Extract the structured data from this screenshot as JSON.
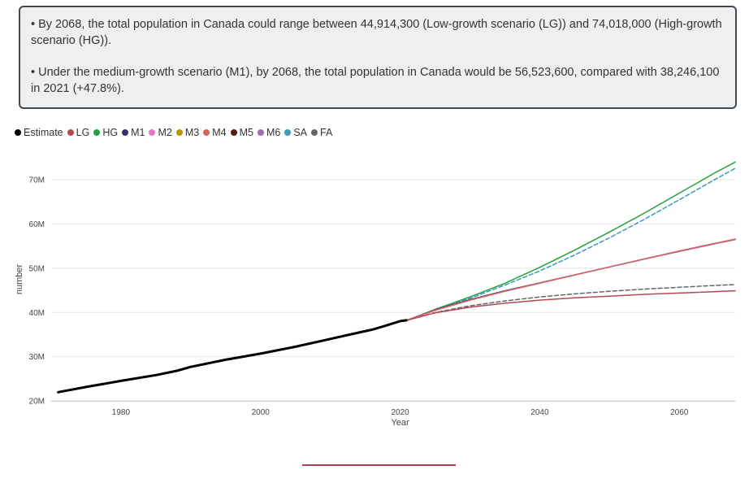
{
  "summary": {
    "bullet1": "• By 2068, the total population in Canada could range between 44,914,300 (Low-growth scenario (LG)) and 74,018,000 (High-growth scenario (HG)).",
    "bullet2": "• Under the medium-growth scenario (M1), by 2068, the total population in Canada would be 56,523,600, compared with 38,246,100 in 2021 (+47.8%)."
  },
  "legend": [
    {
      "label": "Estimate",
      "color": "#000000"
    },
    {
      "label": "LG",
      "color": "#b5474e"
    },
    {
      "label": "HG",
      "color": "#22a13a"
    },
    {
      "label": "M1",
      "color": "#3b2e6b"
    },
    {
      "label": "M2",
      "color": "#e377c2"
    },
    {
      "label": "M3",
      "color": "#b8960b"
    },
    {
      "label": "M4",
      "color": "#d9625e"
    },
    {
      "label": "M5",
      "color": "#5a1a1a"
    },
    {
      "label": "M6",
      "color": "#9c6fb8"
    },
    {
      "label": "SA",
      "color": "#3a9bbf"
    },
    {
      "label": "FA",
      "color": "#666666"
    }
  ],
  "chart_data": {
    "type": "line",
    "xlabel": "Year",
    "ylabel": "number",
    "xlim": [
      1970,
      2068
    ],
    "ylim": [
      20000000,
      75000000
    ],
    "xticks": [
      1980,
      2000,
      2020,
      2040,
      2060
    ],
    "yticks": [
      20000000,
      30000000,
      40000000,
      50000000,
      60000000,
      70000000
    ],
    "ytick_labels": [
      "20M",
      "30M",
      "40M",
      "50M",
      "60M",
      "70M"
    ],
    "grid": true,
    "legend_position": "top-left",
    "series": [
      {
        "name": "Estimate",
        "color": "#000000",
        "dash": false,
        "width": 3,
        "points": [
          [
            1971,
            21960000
          ],
          [
            1975,
            23140000
          ],
          [
            1980,
            24520000
          ],
          [
            1985,
            25840000
          ],
          [
            1988,
            26800000
          ],
          [
            1990,
            27690000
          ],
          [
            1995,
            29300000
          ],
          [
            2000,
            30690000
          ],
          [
            2005,
            32250000
          ],
          [
            2010,
            34010000
          ],
          [
            2014,
            35440000
          ],
          [
            2016,
            36110000
          ],
          [
            2018,
            37060000
          ],
          [
            2020,
            38040000
          ],
          [
            2021,
            38246100
          ]
        ]
      },
      {
        "name": "HG",
        "color": "#22a13a",
        "dash": false,
        "width": 1.5,
        "points": [
          [
            2021,
            38246100
          ],
          [
            2025,
            40700000
          ],
          [
            2030,
            43500000
          ],
          [
            2035,
            46600000
          ],
          [
            2040,
            50200000
          ],
          [
            2045,
            54100000
          ],
          [
            2050,
            58200000
          ],
          [
            2055,
            62500000
          ],
          [
            2060,
            67000000
          ],
          [
            2065,
            71500000
          ],
          [
            2068,
            74018000
          ]
        ]
      },
      {
        "name": "SA",
        "color": "#3a9bbf",
        "dash": true,
        "width": 1.5,
        "points": [
          [
            2021,
            38246100
          ],
          [
            2025,
            40600000
          ],
          [
            2030,
            43200000
          ],
          [
            2035,
            46200000
          ],
          [
            2040,
            49400000
          ],
          [
            2045,
            53000000
          ],
          [
            2050,
            56900000
          ],
          [
            2055,
            61100000
          ],
          [
            2060,
            65500000
          ],
          [
            2065,
            70000000
          ],
          [
            2068,
            72600000
          ]
        ]
      },
      {
        "name": "M1",
        "color": "#3b2e6b",
        "dash": false,
        "width": 1.5,
        "points": [
          [
            2021,
            38246100
          ],
          [
            2025,
            40600000
          ],
          [
            2030,
            42900000
          ],
          [
            2035,
            44900000
          ],
          [
            2040,
            46700000
          ],
          [
            2045,
            48500000
          ],
          [
            2050,
            50300000
          ],
          [
            2055,
            52100000
          ],
          [
            2060,
            53900000
          ],
          [
            2065,
            55600000
          ],
          [
            2068,
            56523600
          ]
        ]
      },
      {
        "name": "M6",
        "color": "#9c6fb8",
        "dash": false,
        "width": 1.5,
        "points": [
          [
            2021,
            38246100
          ],
          [
            2025,
            40500000
          ],
          [
            2030,
            42800000
          ],
          [
            2035,
            44800000
          ],
          [
            2040,
            46700000
          ],
          [
            2045,
            48500000
          ],
          [
            2050,
            50300000
          ],
          [
            2055,
            52100000
          ],
          [
            2060,
            53800000
          ],
          [
            2065,
            55500000
          ],
          [
            2068,
            56500000
          ]
        ]
      },
      {
        "name": "M4",
        "color": "#d9625e",
        "dash": false,
        "width": 1.5,
        "points": [
          [
            2021,
            38246100
          ],
          [
            2025,
            40500000
          ],
          [
            2030,
            42800000
          ],
          [
            2035,
            44800000
          ],
          [
            2040,
            46600000
          ],
          [
            2045,
            48500000
          ],
          [
            2050,
            50300000
          ],
          [
            2055,
            52100000
          ],
          [
            2060,
            53900000
          ],
          [
            2065,
            55600000
          ],
          [
            2068,
            56600000
          ]
        ]
      },
      {
        "name": "FA",
        "color": "#666666",
        "dash": true,
        "width": 1.5,
        "points": [
          [
            2021,
            38246100
          ],
          [
            2025,
            40000000
          ],
          [
            2030,
            41500000
          ],
          [
            2035,
            42600000
          ],
          [
            2040,
            43500000
          ],
          [
            2045,
            44200000
          ],
          [
            2050,
            44800000
          ],
          [
            2055,
            45300000
          ],
          [
            2060,
            45700000
          ],
          [
            2065,
            46100000
          ],
          [
            2068,
            46300000
          ]
        ]
      },
      {
        "name": "LG",
        "color": "#b5474e",
        "dash": false,
        "width": 1.5,
        "points": [
          [
            2021,
            38246100
          ],
          [
            2025,
            39900000
          ],
          [
            2030,
            41200000
          ],
          [
            2035,
            42100000
          ],
          [
            2040,
            42800000
          ],
          [
            2045,
            43300000
          ],
          [
            2050,
            43700000
          ],
          [
            2055,
            44100000
          ],
          [
            2060,
            44400000
          ],
          [
            2065,
            44700000
          ],
          [
            2068,
            44914300
          ]
        ]
      }
    ]
  }
}
